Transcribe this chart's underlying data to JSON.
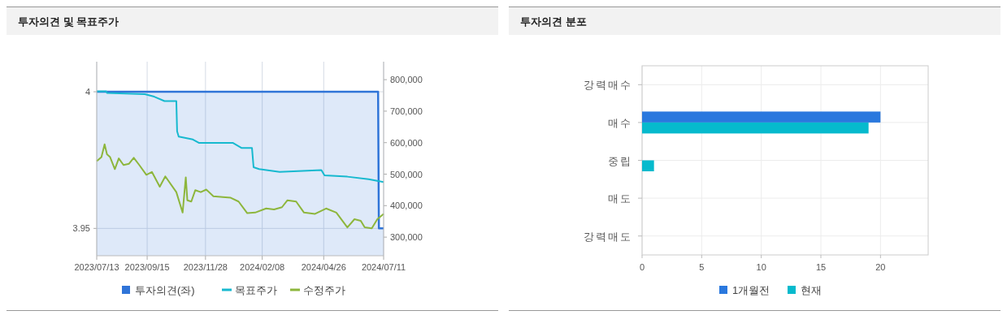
{
  "chart_data": [
    {
      "type": "line",
      "title": "투자의견 및 목표주가",
      "legend": "bottom",
      "grid": true,
      "xlim": [
        "2023-07-13",
        "2024-07-11"
      ],
      "xticks": [
        {
          "value": "2023-07-13",
          "label": "2023/07/13"
        },
        {
          "value": "2023-09-15",
          "label": "2023/09/15"
        },
        {
          "value": "2023-11-28",
          "label": "2023/11/28"
        },
        {
          "value": "2024-02-08",
          "label": "2024/02/08"
        },
        {
          "value": "2024-04-26",
          "label": "2024/04/26"
        },
        {
          "value": "2024-07-11",
          "label": "2024/07/11"
        }
      ],
      "ylim": [
        3.94,
        4.011
      ],
      "yticks": [
        4,
        3.95
      ],
      "y2lim": [
        241000,
        857000
      ],
      "y2ticks": [
        {
          "value": 300000,
          "label": "300,000"
        },
        {
          "value": 400000,
          "label": "400,000"
        },
        {
          "value": 500000,
          "label": "500,000"
        },
        {
          "value": 600000,
          "label": "600,000"
        },
        {
          "value": 700000,
          "label": "700,000"
        },
        {
          "value": 800000,
          "label": "800,000"
        }
      ],
      "series": [
        {
          "name": "투자의견(좌)",
          "type": "area",
          "color": "#2f74d8",
          "x": [
            "2023-07-13",
            "2024-07-04",
            "2024-07-05",
            "2024-07-11"
          ],
          "values": [
            4,
            4,
            3.95,
            3.95
          ]
        },
        {
          "name": "목표주가",
          "type": "line",
          "axis": "y2",
          "color": "#17b9cf",
          "x": [
            "2023-07-13",
            "2023-07-25",
            "2023-07-26",
            "2023-09-12",
            "2023-09-24",
            "2023-10-07",
            "2023-10-22",
            "2023-10-23",
            "2023-10-25",
            "2023-11-12",
            "2023-11-20",
            "2024-01-02",
            "2024-01-13",
            "2024-01-26",
            "2024-01-28",
            "2024-02-04",
            "2024-03-01",
            "2024-04-23",
            "2024-04-27",
            "2024-05-26",
            "2024-06-22",
            "2024-07-11"
          ],
          "values": [
            763000,
            763000,
            758000,
            754000,
            746000,
            732000,
            732000,
            636000,
            619000,
            610000,
            599000,
            599000,
            583000,
            583000,
            522000,
            516000,
            507000,
            513000,
            496000,
            492000,
            484000,
            475000
          ]
        },
        {
          "name": "수정주가",
          "type": "line",
          "axis": "y2",
          "color": "#8db63c",
          "x": [
            "2023-07-13",
            "2023-07-19",
            "2023-07-23",
            "2023-07-26",
            "2023-07-30",
            "2023-08-05",
            "2023-08-10",
            "2023-08-16",
            "2023-08-23",
            "2023-08-29",
            "2023-09-05",
            "2023-09-14",
            "2023-09-21",
            "2023-10-01",
            "2023-10-08",
            "2023-10-22",
            "2023-10-30",
            "2023-11-03",
            "2023-11-05",
            "2023-11-10",
            "2023-11-15",
            "2023-11-22",
            "2023-11-29",
            "2023-12-08",
            "2023-12-20",
            "2023-12-30",
            "2024-01-09",
            "2024-01-20",
            "2024-01-30",
            "2024-02-13",
            "2024-02-23",
            "2024-03-04",
            "2024-03-11",
            "2024-03-22",
            "2024-04-01",
            "2024-04-15",
            "2024-04-29",
            "2024-05-12",
            "2024-05-26",
            "2024-06-04",
            "2024-06-12",
            "2024-06-17",
            "2024-06-26",
            "2024-07-03",
            "2024-07-11"
          ],
          "values": [
            541000,
            554000,
            595000,
            563000,
            554000,
            516000,
            550000,
            529000,
            533000,
            552000,
            529000,
            498000,
            507000,
            460000,
            493000,
            443000,
            378000,
            490000,
            417000,
            413000,
            449000,
            443000,
            451000,
            430000,
            427000,
            425000,
            413000,
            376000,
            378000,
            391000,
            388000,
            395000,
            417000,
            413000,
            378000,
            374000,
            391000,
            378000,
            331000,
            357000,
            352000,
            331000,
            328000,
            357000,
            374000
          ]
        }
      ]
    },
    {
      "type": "bar",
      "title": "투자의견 분포",
      "orientation": "horizontal",
      "legend": "bottom",
      "grid": true,
      "categories": [
        "강력매수",
        "매수",
        "중립",
        "매도",
        "강력매도"
      ],
      "xlim": [
        0,
        24
      ],
      "xticks": [
        0,
        5,
        10,
        15,
        20
      ],
      "series": [
        {
          "name": "1개월전",
          "color": "#2a78de",
          "values": [
            0,
            20,
            0,
            0,
            0
          ]
        },
        {
          "name": "현재",
          "color": "#06bacd",
          "values": [
            0,
            19,
            1,
            0,
            0
          ]
        }
      ]
    }
  ]
}
